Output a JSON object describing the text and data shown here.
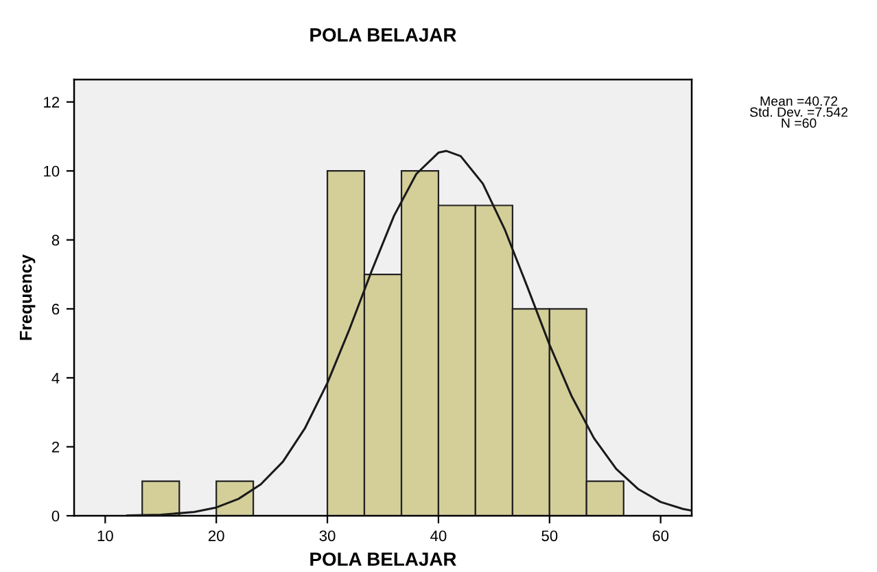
{
  "chart_data": {
    "type": "histogram",
    "title": "POLA BELAJAR",
    "xlabel": "POLA BELAJAR",
    "ylabel": "Frequency",
    "bins": [
      13.33,
      16.67,
      20,
      23.33,
      26.67,
      30,
      33.33,
      36.67,
      40,
      43.33,
      46.67,
      50,
      53.33,
      56.67
    ],
    "values": [
      1,
      0,
      1,
      0,
      0,
      10,
      7,
      10,
      9,
      9,
      6,
      6,
      1
    ],
    "color": "#d4cf99",
    "series": [
      {
        "type": "line",
        "color": "#1a1a1a",
        "x": [
          12,
          15,
          18,
          20,
          22,
          24,
          26,
          28,
          30,
          32,
          34,
          36,
          38,
          40,
          40.72,
          42,
          44,
          46,
          48,
          50,
          52,
          54,
          56,
          58,
          60,
          62,
          62.8
        ],
        "values": [
          0.01,
          0.03,
          0.11,
          0.24,
          0.49,
          0.91,
          1.57,
          2.55,
          3.85,
          5.42,
          7.11,
          8.7,
          9.91,
          10.53,
          10.58,
          10.43,
          9.63,
          8.28,
          6.64,
          4.96,
          3.46,
          2.25,
          1.36,
          0.77,
          0.4,
          0.2,
          0.15
        ]
      }
    ],
    "xlim": [
      7.2,
      62.8
    ],
    "ylim": [
      0,
      12.65
    ],
    "xticks": [
      10,
      20,
      30,
      40,
      50,
      60
    ],
    "yticks": [
      0,
      2,
      4,
      6,
      8,
      10,
      12
    ],
    "grid": false,
    "legend": false,
    "annotations": [
      "Mean =40.72\nStd. Dev. =7.542\nN =60"
    ]
  }
}
